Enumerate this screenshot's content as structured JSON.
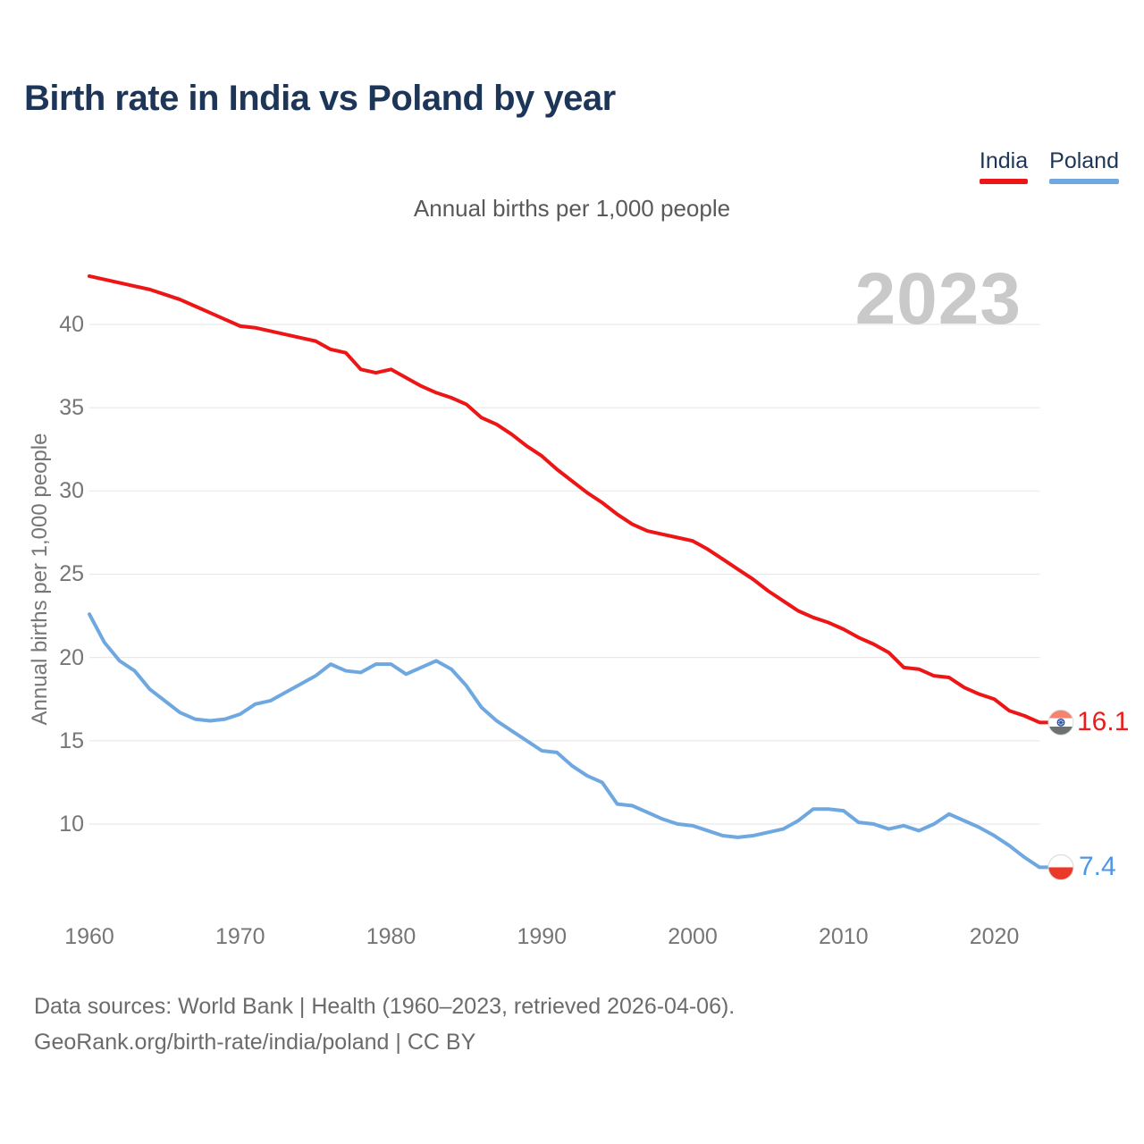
{
  "header": {
    "title": "Birth rate in India vs Poland by year",
    "subtitle": "Annual births per 1,000 people"
  },
  "legend": [
    {
      "label": "India",
      "color": "#ed1515"
    },
    {
      "label": "Poland",
      "color": "#6fa8e0"
    }
  ],
  "watermark": "2023",
  "axes": {
    "y_title": "Annual births per 1,000 people",
    "y_ticks": [
      40,
      35,
      30,
      25,
      20,
      15,
      10
    ],
    "x_ticks": [
      1960,
      1970,
      1980,
      1990,
      2000,
      2010,
      2020
    ]
  },
  "end_labels": {
    "india": "16.1",
    "india_color": "#ed1c1c",
    "poland": "7.4",
    "poland_color": "#4b96e6"
  },
  "flags": {
    "india": {
      "top": "#f5836f",
      "middle": "#ffffff",
      "bottom": "#6d716f",
      "chakra": "#2b4d9e",
      "ring": "#dcdcdc"
    },
    "poland": {
      "top": "#ffffff",
      "bottom": "#ea3829",
      "ring": "#d8d8d8"
    }
  },
  "footer": {
    "line1": "Data sources: World Bank | Health (1960–2023, retrieved 2026-04-06).",
    "line2": "GeoRank.org/birth-rate/india/poland | CC BY"
  },
  "chart_data": {
    "type": "line",
    "title": "Birth rate in India vs Poland by year",
    "subtitle": "Annual births per 1,000 people",
    "ylabel": "Annual births per 1,000 people",
    "xlabel": "",
    "grid": "horizontal",
    "legend_position": "top-right",
    "xlim": [
      1960,
      2023
    ],
    "ylim": [
      6,
      44
    ],
    "x": [
      1960,
      1961,
      1962,
      1963,
      1964,
      1965,
      1966,
      1967,
      1968,
      1969,
      1970,
      1971,
      1972,
      1973,
      1974,
      1975,
      1976,
      1977,
      1978,
      1979,
      1980,
      1981,
      1982,
      1983,
      1984,
      1985,
      1986,
      1987,
      1988,
      1989,
      1990,
      1991,
      1992,
      1993,
      1994,
      1995,
      1996,
      1997,
      1998,
      1999,
      2000,
      2001,
      2002,
      2003,
      2004,
      2005,
      2006,
      2007,
      2008,
      2009,
      2010,
      2011,
      2012,
      2013,
      2014,
      2015,
      2016,
      2017,
      2018,
      2019,
      2020,
      2021,
      2022,
      2023
    ],
    "series": [
      {
        "name": "India",
        "color": "#ed1515",
        "end_value": 16.1,
        "values": [
          42.9,
          42.7,
          42.5,
          42.3,
          42.1,
          41.8,
          41.5,
          41.1,
          40.7,
          40.3,
          39.9,
          39.8,
          39.6,
          39.4,
          39.2,
          39.0,
          38.5,
          38.3,
          37.3,
          37.1,
          37.3,
          36.8,
          36.3,
          35.9,
          35.6,
          35.2,
          34.4,
          34.0,
          33.4,
          32.7,
          32.1,
          31.3,
          30.6,
          29.9,
          29.3,
          28.6,
          28.0,
          27.6,
          27.4,
          27.2,
          27.0,
          26.5,
          25.9,
          25.3,
          24.7,
          24.0,
          23.4,
          22.8,
          22.4,
          22.1,
          21.7,
          21.2,
          20.8,
          20.3,
          19.4,
          19.3,
          18.9,
          18.8,
          18.2,
          17.8,
          17.5,
          16.8,
          16.5,
          16.1
        ]
      },
      {
        "name": "Poland",
        "color": "#6fa8e0",
        "end_value": 7.4,
        "values": [
          22.6,
          20.9,
          19.8,
          19.2,
          18.1,
          17.4,
          16.7,
          16.3,
          16.2,
          16.3,
          16.6,
          17.2,
          17.4,
          17.9,
          18.4,
          18.9,
          19.6,
          19.2,
          19.1,
          19.6,
          19.6,
          19.0,
          19.4,
          19.8,
          19.3,
          18.3,
          17.0,
          16.2,
          15.6,
          15.0,
          14.4,
          14.3,
          13.5,
          12.9,
          12.5,
          11.2,
          11.1,
          10.7,
          10.3,
          10.0,
          9.9,
          9.6,
          9.3,
          9.2,
          9.3,
          9.5,
          9.7,
          10.2,
          10.9,
          10.9,
          10.8,
          10.1,
          10.0,
          9.7,
          9.9,
          9.6,
          10.0,
          10.6,
          10.2,
          9.8,
          9.3,
          8.7,
          8.0,
          7.4
        ]
      }
    ]
  }
}
